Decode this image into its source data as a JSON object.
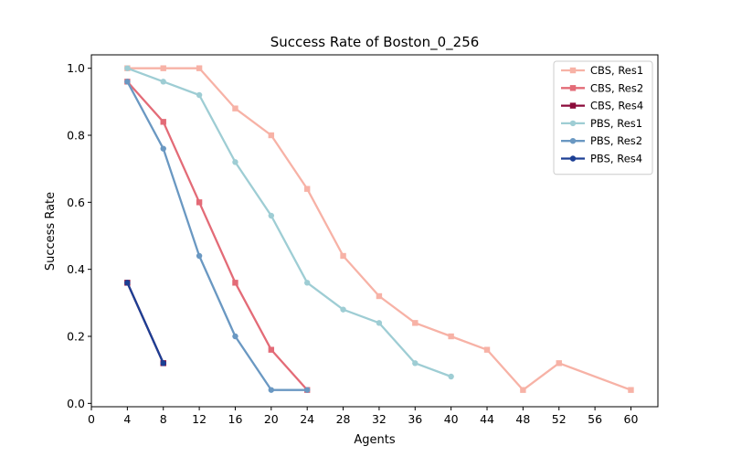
{
  "chart_data": {
    "type": "line",
    "title": "Success Rate of Boston_0_256",
    "xlabel": "Agents",
    "ylabel": "Success Rate",
    "xlim": [
      0,
      63
    ],
    "ylim": [
      -0.01,
      1.04
    ],
    "xticks": [
      0,
      4,
      8,
      12,
      16,
      20,
      24,
      28,
      32,
      36,
      40,
      44,
      48,
      52,
      56,
      60
    ],
    "yticks": [
      0.0,
      0.2,
      0.4,
      0.6,
      0.8,
      1.0
    ],
    "grid": false,
    "legend_position": "top-right",
    "series": [
      {
        "name": "CBS, Res1",
        "color": "#f7b2a6",
        "marker": "square",
        "x": [
          4,
          8,
          12,
          16,
          20,
          24,
          28,
          32,
          36,
          40,
          44,
          48,
          52,
          60
        ],
        "y": [
          1.0,
          1.0,
          1.0,
          0.88,
          0.8,
          0.64,
          0.44,
          0.32,
          0.24,
          0.2,
          0.16,
          0.04,
          0.12,
          0.04
        ]
      },
      {
        "name": "CBS, Res2",
        "color": "#e36b77",
        "marker": "square",
        "x": [
          4,
          8,
          12,
          16,
          20,
          24
        ],
        "y": [
          0.96,
          0.84,
          0.6,
          0.36,
          0.16,
          0.04
        ]
      },
      {
        "name": "CBS, Res4",
        "color": "#8b0a3a",
        "marker": "square",
        "x": [
          4,
          8
        ],
        "y": [
          0.36,
          0.12
        ]
      },
      {
        "name": "PBS, Res1",
        "color": "#9ecdd4",
        "marker": "circle",
        "x": [
          4,
          8,
          12,
          16,
          20,
          24,
          28,
          32,
          36,
          40
        ],
        "y": [
          1.0,
          0.96,
          0.92,
          0.72,
          0.56,
          0.36,
          0.28,
          0.24,
          0.12,
          0.08
        ]
      },
      {
        "name": "PBS, Res2",
        "color": "#6a98c2",
        "marker": "circle",
        "x": [
          4,
          8,
          12,
          16,
          20,
          24
        ],
        "y": [
          0.96,
          0.76,
          0.44,
          0.2,
          0.04,
          0.04
        ]
      },
      {
        "name": "PBS, Res4",
        "color": "#1c3f94",
        "marker": "circle",
        "x": [
          4,
          8
        ],
        "y": [
          0.36,
          0.12
        ]
      }
    ]
  }
}
